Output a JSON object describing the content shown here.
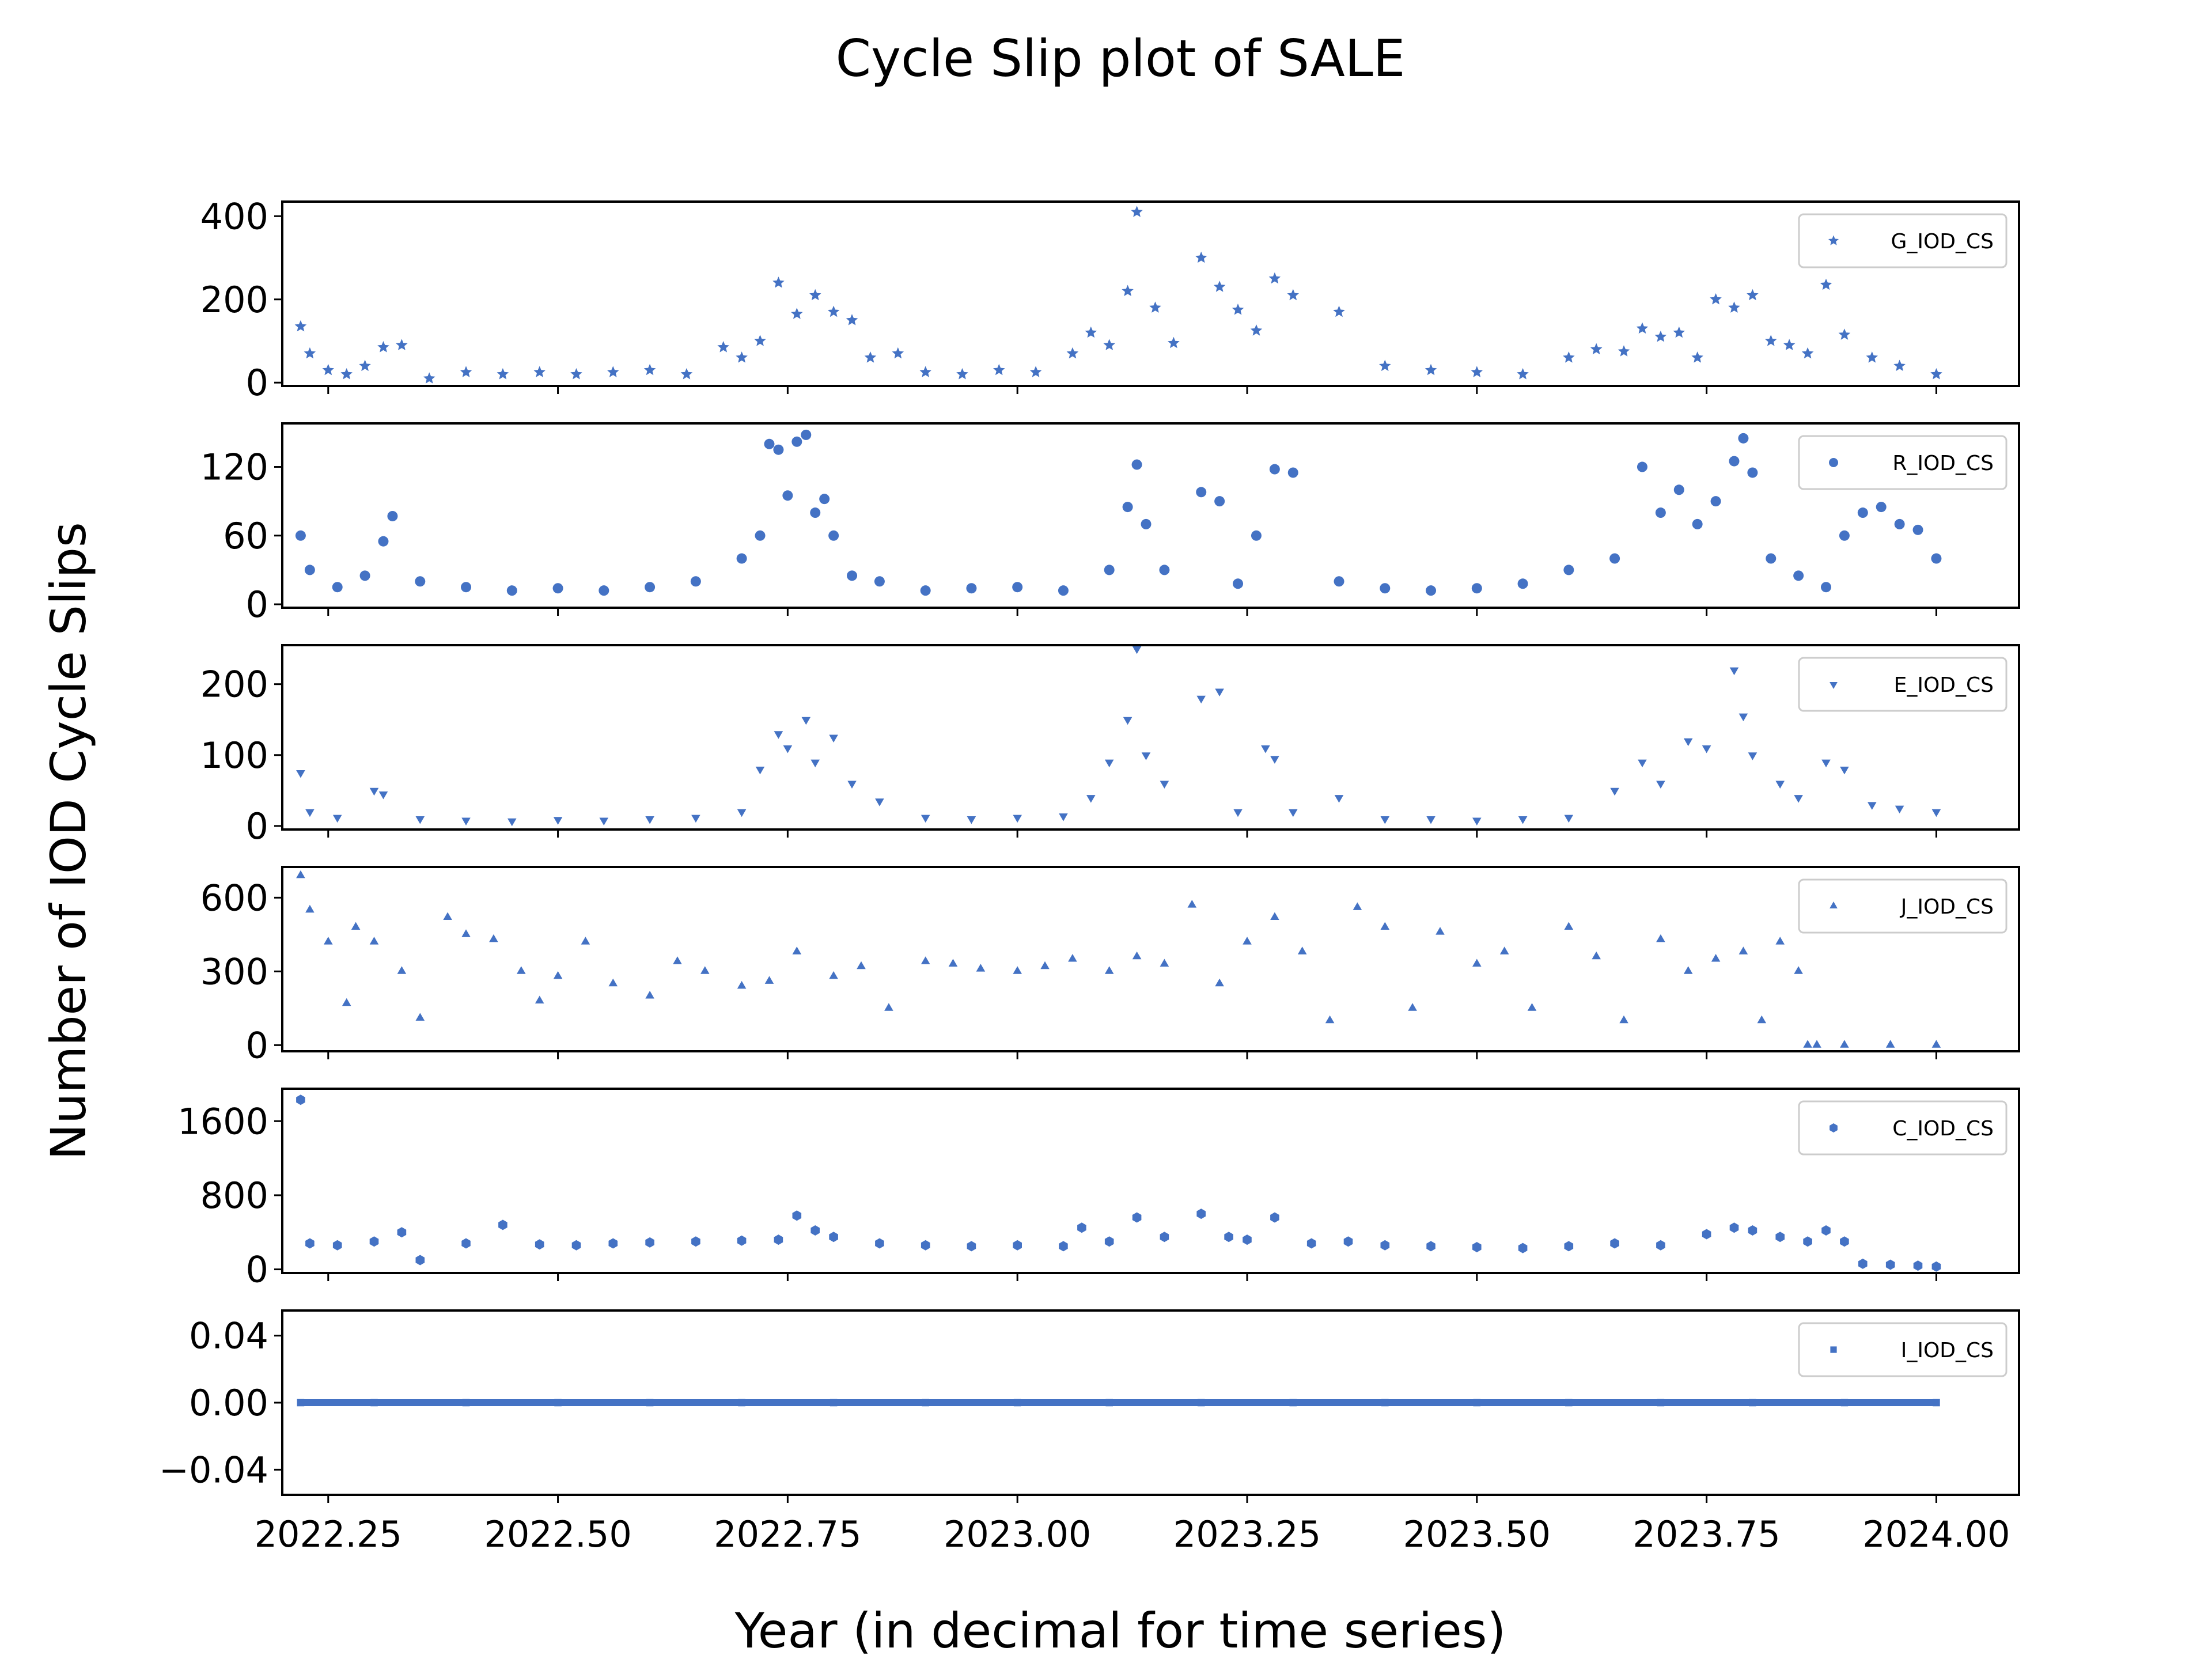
{
  "title": "Cycle Slip plot of SALE",
  "xlabel": "Year (in decimal for time series)",
  "ylabel": "Number of IOD Cycle Slips",
  "colors": {
    "marker": "#4472c4",
    "axis": "#000000",
    "legend_border": "#cccccc",
    "background": "#ffffff"
  },
  "chart_data": [
    {
      "type": "scatter",
      "name": "G_IOD_CS",
      "marker": "star",
      "xlim": [
        2022.2,
        2024.09
      ],
      "ylim": [
        -8,
        435
      ],
      "yticks": [
        "0",
        "200",
        "400"
      ],
      "ytick_values": [
        0,
        200,
        400
      ],
      "xticks": [
        "2022.25",
        "2022.50",
        "2022.75",
        "2023.00",
        "2023.25",
        "2023.50",
        "2023.75",
        "2024.00"
      ],
      "xtick_values": [
        2022.25,
        2022.5,
        2022.75,
        2023.0,
        2023.25,
        2023.5,
        2023.75,
        2024.0
      ],
      "legend": "top-right",
      "x": [
        2022.22,
        2022.23,
        2022.25,
        2022.27,
        2022.29,
        2022.31,
        2022.33,
        2022.36,
        2022.4,
        2022.44,
        2022.48,
        2022.52,
        2022.56,
        2022.6,
        2022.64,
        2022.68,
        2022.7,
        2022.72,
        2022.74,
        2022.76,
        2022.78,
        2022.8,
        2022.82,
        2022.84,
        2022.87,
        2022.9,
        2022.94,
        2022.98,
        2023.02,
        2023.06,
        2023.08,
        2023.1,
        2023.12,
        2023.13,
        2023.15,
        2023.17,
        2023.2,
        2023.22,
        2023.24,
        2023.26,
        2023.28,
        2023.3,
        2023.35,
        2023.4,
        2023.45,
        2023.5,
        2023.55,
        2023.6,
        2023.63,
        2023.66,
        2023.68,
        2023.7,
        2023.72,
        2023.74,
        2023.76,
        2023.78,
        2023.8,
        2023.82,
        2023.84,
        2023.86,
        2023.88,
        2023.9,
        2023.93,
        2023.96,
        2024.0
      ],
      "y": [
        135,
        70,
        30,
        20,
        40,
        85,
        90,
        10,
        25,
        20,
        25,
        20,
        25,
        30,
        20,
        85,
        60,
        100,
        240,
        165,
        210,
        170,
        150,
        60,
        70,
        25,
        20,
        30,
        25,
        70,
        120,
        90,
        220,
        410,
        180,
        95,
        300,
        230,
        175,
        125,
        250,
        210,
        170,
        40,
        30,
        25,
        20,
        60,
        80,
        75,
        130,
        110,
        120,
        60,
        200,
        180,
        210,
        100,
        90,
        70,
        235,
        115,
        60,
        40,
        20
      ]
    },
    {
      "type": "scatter",
      "name": "R_IOD_CS",
      "marker": "circle",
      "xlim": [
        2022.2,
        2024.09
      ],
      "ylim": [
        -3,
        158
      ],
      "yticks": [
        "0",
        "60",
        "120"
      ],
      "ytick_values": [
        0,
        60,
        120
      ],
      "xticks": [
        "2022.25",
        "2022.50",
        "2022.75",
        "2023.00",
        "2023.25",
        "2023.50",
        "2023.75",
        "2024.00"
      ],
      "xtick_values": [
        2022.25,
        2022.5,
        2022.75,
        2023.0,
        2023.25,
        2023.5,
        2023.75,
        2024.0
      ],
      "legend": "top-right",
      "x": [
        2022.22,
        2022.23,
        2022.26,
        2022.29,
        2022.31,
        2022.32,
        2022.35,
        2022.4,
        2022.45,
        2022.5,
        2022.55,
        2022.6,
        2022.65,
        2022.7,
        2022.72,
        2022.73,
        2022.74,
        2022.75,
        2022.76,
        2022.77,
        2022.78,
        2022.79,
        2022.8,
        2022.82,
        2022.85,
        2022.9,
        2022.95,
        2023.0,
        2023.05,
        2023.1,
        2023.12,
        2023.13,
        2023.14,
        2023.16,
        2023.2,
        2023.22,
        2023.24,
        2023.26,
        2023.28,
        2023.3,
        2023.35,
        2023.4,
        2023.45,
        2023.5,
        2023.55,
        2023.6,
        2023.65,
        2023.68,
        2023.7,
        2023.72,
        2023.74,
        2023.76,
        2023.78,
        2023.79,
        2023.8,
        2023.82,
        2023.85,
        2023.88,
        2023.9,
        2023.92,
        2023.94,
        2023.96,
        2023.98,
        2024.0
      ],
      "y": [
        60,
        30,
        15,
        25,
        55,
        77,
        20,
        15,
        12,
        14,
        12,
        15,
        20,
        40,
        60,
        140,
        135,
        95,
        142,
        148,
        80,
        92,
        60,
        25,
        20,
        12,
        14,
        15,
        12,
        30,
        85,
        122,
        70,
        30,
        98,
        90,
        18,
        60,
        118,
        115,
        20,
        14,
        12,
        14,
        18,
        30,
        40,
        120,
        80,
        100,
        70,
        90,
        125,
        145,
        115,
        40,
        25,
        15,
        60,
        80,
        85,
        70,
        65,
        40
      ]
    },
    {
      "type": "scatter",
      "name": "E_IOD_CS",
      "marker": "triangle-down",
      "xlim": [
        2022.2,
        2024.09
      ],
      "ylim": [
        -5,
        255
      ],
      "yticks": [
        "0",
        "100",
        "200"
      ],
      "ytick_values": [
        0,
        100,
        200
      ],
      "xticks": [
        "2022.25",
        "2022.50",
        "2022.75",
        "2023.00",
        "2023.25",
        "2023.50",
        "2023.75",
        "2024.00"
      ],
      "xtick_values": [
        2022.25,
        2022.5,
        2022.75,
        2023.0,
        2023.25,
        2023.5,
        2023.75,
        2024.0
      ],
      "legend": "top-right",
      "x": [
        2022.22,
        2022.23,
        2022.26,
        2022.3,
        2022.31,
        2022.35,
        2022.4,
        2022.45,
        2022.5,
        2022.55,
        2022.6,
        2022.65,
        2022.7,
        2022.72,
        2022.74,
        2022.75,
        2022.77,
        2022.78,
        2022.8,
        2022.82,
        2022.85,
        2022.9,
        2022.95,
        2023.0,
        2023.05,
        2023.08,
        2023.1,
        2023.12,
        2023.13,
        2023.14,
        2023.16,
        2023.2,
        2023.22,
        2023.24,
        2023.27,
        2023.28,
        2023.3,
        2023.35,
        2023.4,
        2023.45,
        2023.5,
        2023.55,
        2023.6,
        2023.65,
        2023.68,
        2023.7,
        2023.73,
        2023.75,
        2023.78,
        2023.79,
        2023.8,
        2023.83,
        2023.85,
        2023.88,
        2023.9,
        2023.93,
        2023.96,
        2024.0
      ],
      "y": [
        75,
        20,
        12,
        50,
        45,
        10,
        8,
        7,
        9,
        8,
        10,
        12,
        20,
        80,
        130,
        110,
        150,
        90,
        125,
        60,
        35,
        12,
        10,
        12,
        14,
        40,
        90,
        150,
        250,
        100,
        60,
        180,
        190,
        20,
        110,
        95,
        20,
        40,
        10,
        10,
        8,
        10,
        12,
        50,
        90,
        60,
        120,
        110,
        220,
        155,
        100,
        60,
        40,
        90,
        80,
        30,
        25,
        20
      ]
    },
    {
      "type": "scatter",
      "name": "J_IOD_CS",
      "marker": "triangle-up",
      "xlim": [
        2022.2,
        2024.09
      ],
      "ylim": [
        -25,
        725
      ],
      "yticks": [
        "0",
        "300",
        "600"
      ],
      "ytick_values": [
        0,
        300,
        600
      ],
      "xticks": [
        "2022.25",
        "2022.50",
        "2022.75",
        "2023.00",
        "2023.25",
        "2023.50",
        "2023.75",
        "2024.00"
      ],
      "xtick_values": [
        2022.25,
        2022.5,
        2022.75,
        2023.0,
        2023.25,
        2023.5,
        2023.75,
        2024.0
      ],
      "legend": "top-right",
      "x": [
        2022.22,
        2022.23,
        2022.25,
        2022.27,
        2022.28,
        2022.3,
        2022.33,
        2022.35,
        2022.38,
        2022.4,
        2022.43,
        2022.46,
        2022.48,
        2022.5,
        2022.53,
        2022.56,
        2022.6,
        2022.63,
        2022.66,
        2022.7,
        2022.73,
        2022.76,
        2022.8,
        2022.83,
        2022.86,
        2022.9,
        2022.93,
        2022.96,
        2023.0,
        2023.03,
        2023.06,
        2023.1,
        2023.13,
        2023.16,
        2023.19,
        2023.22,
        2023.25,
        2023.28,
        2023.31,
        2023.34,
        2023.37,
        2023.4,
        2023.43,
        2023.46,
        2023.5,
        2023.53,
        2023.56,
        2023.6,
        2023.63,
        2023.66,
        2023.7,
        2023.73,
        2023.76,
        2023.79,
        2023.81,
        2023.83,
        2023.85,
        2023.86,
        2023.87,
        2023.9,
        2023.95,
        2024.0
      ],
      "y": [
        690,
        550,
        420,
        170,
        480,
        420,
        300,
        110,
        520,
        450,
        430,
        300,
        180,
        280,
        420,
        250,
        200,
        340,
        300,
        240,
        260,
        380,
        280,
        320,
        150,
        340,
        330,
        310,
        300,
        320,
        350,
        300,
        360,
        330,
        570,
        250,
        420,
        520,
        380,
        100,
        560,
        480,
        150,
        460,
        330,
        380,
        150,
        480,
        360,
        100,
        430,
        300,
        350,
        380,
        100,
        420,
        300,
        0,
        0,
        0,
        0,
        0
      ]
    },
    {
      "type": "scatter",
      "name": "C_IOD_CS",
      "marker": "hexagon",
      "xlim": [
        2022.2,
        2024.09
      ],
      "ylim": [
        -40,
        1950
      ],
      "yticks": [
        "0",
        "800",
        "1600"
      ],
      "ytick_values": [
        0,
        800,
        1600
      ],
      "xticks": [
        "2022.25",
        "2022.50",
        "2022.75",
        "2023.00",
        "2023.25",
        "2023.50",
        "2023.75",
        "2024.00"
      ],
      "xtick_values": [
        2022.25,
        2022.5,
        2022.75,
        2023.0,
        2023.25,
        2023.5,
        2023.75,
        2024.0
      ],
      "legend": "top-right",
      "x": [
        2022.22,
        2022.23,
        2022.26,
        2022.3,
        2022.33,
        2022.35,
        2022.4,
        2022.44,
        2022.48,
        2022.52,
        2022.56,
        2022.6,
        2022.65,
        2022.7,
        2022.74,
        2022.76,
        2022.78,
        2022.8,
        2022.85,
        2022.9,
        2022.95,
        2023.0,
        2023.05,
        2023.07,
        2023.1,
        2023.13,
        2023.16,
        2023.2,
        2023.23,
        2023.25,
        2023.28,
        2023.32,
        2023.36,
        2023.4,
        2023.45,
        2023.5,
        2023.55,
        2023.6,
        2023.65,
        2023.7,
        2023.75,
        2023.78,
        2023.8,
        2023.83,
        2023.86,
        2023.88,
        2023.9,
        2023.92,
        2023.95,
        2023.98,
        2024.0
      ],
      "y": [
        1830,
        280,
        260,
        300,
        400,
        100,
        280,
        480,
        270,
        260,
        280,
        290,
        300,
        310,
        320,
        580,
        420,
        350,
        280,
        260,
        250,
        260,
        250,
        450,
        300,
        560,
        350,
        600,
        350,
        320,
        560,
        280,
        300,
        260,
        250,
        240,
        230,
        250,
        280,
        260,
        380,
        450,
        420,
        350,
        300,
        420,
        300,
        60,
        50,
        40,
        30
      ]
    },
    {
      "type": "scatter",
      "name": "I_IOD_CS",
      "marker": "square",
      "xlim": [
        2022.2,
        2024.09
      ],
      "ylim": [
        -0.055,
        0.055
      ],
      "yticks": [
        "−0.04",
        "0.00",
        "0.04"
      ],
      "ytick_values": [
        -0.04,
        0.0,
        0.04
      ],
      "xticks": [
        "2022.25",
        "2022.50",
        "2022.75",
        "2023.00",
        "2023.25",
        "2023.50",
        "2023.75",
        "2024.00"
      ],
      "xtick_values": [
        2022.25,
        2022.5,
        2022.75,
        2023.0,
        2023.25,
        2023.5,
        2023.75,
        2024.0
      ],
      "legend": "top-right",
      "x": [
        2022.22,
        2022.3,
        2022.4,
        2022.5,
        2022.6,
        2022.7,
        2022.8,
        2022.9,
        2023.0,
        2023.1,
        2023.2,
        2023.3,
        2023.4,
        2023.5,
        2023.6,
        2023.7,
        2023.8,
        2023.9,
        2024.0
      ],
      "y": [
        0,
        0,
        0,
        0,
        0,
        0,
        0,
        0,
        0,
        0,
        0,
        0,
        0,
        0,
        0,
        0,
        0,
        0,
        0
      ]
    }
  ]
}
